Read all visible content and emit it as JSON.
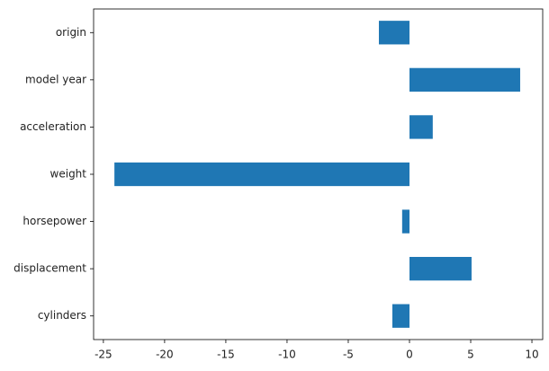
{
  "chart_data": {
    "type": "barh",
    "categories": [
      "cylinders",
      "displacement",
      "horsepower",
      "weight",
      "acceleration",
      "model year",
      "origin"
    ],
    "values": [
      -1.4,
      5.07,
      -0.6,
      -24.1,
      1.9,
      9.04,
      -2.5
    ],
    "color": "#1f77b4",
    "xlim": [
      -25.8,
      10.88
    ],
    "xticks": [
      -25,
      -20,
      -15,
      -10,
      -5,
      0,
      5,
      10
    ],
    "grid": false
  }
}
